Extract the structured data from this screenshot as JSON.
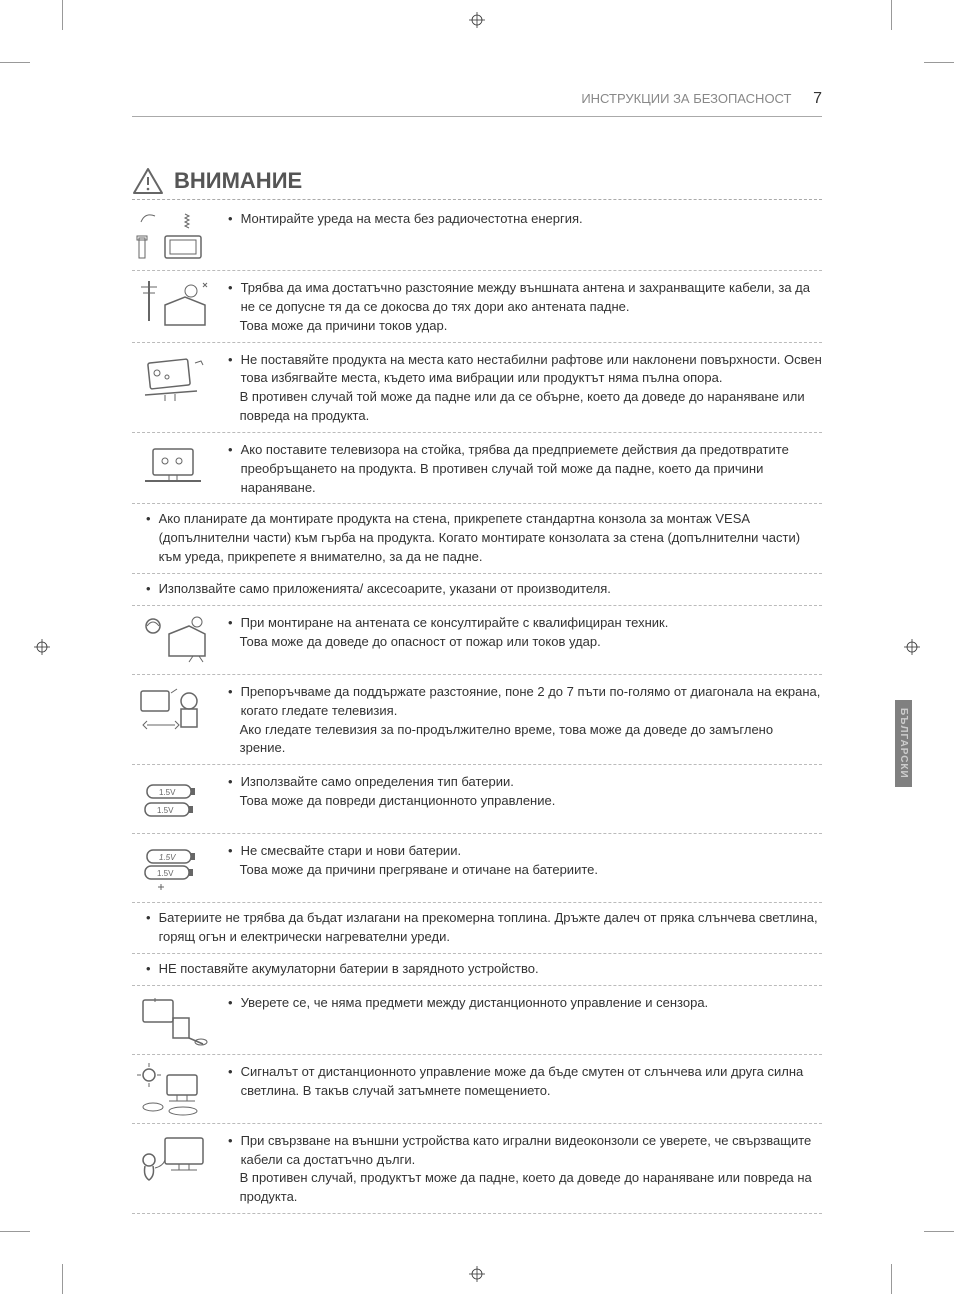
{
  "header": {
    "section": "ИНСТРУКЦИИ ЗА БЕЗОПАСНОСТ",
    "page": "7"
  },
  "title": "ВНИМАНИЕ",
  "side_tab": "БЪЛГАРСКИ",
  "rows": [
    {
      "icon": "radio",
      "lines": [
        "Монтирайте уреда на места без радиочестотна енергия."
      ]
    },
    {
      "icon": "antenna",
      "lines": [
        "Трябва да има достатъчно разстояние между външната антена и захранващите кабели, за да не се допусне тя да се докосва до тях дори ако антената падне.",
        "Това може да причини токов удар."
      ]
    },
    {
      "icon": "tilt",
      "lines": [
        "Не поставяйте продукта на места като нестабилни рафтове или наклонени повърхности. Освен това избягвайте места, където има вибрации или продуктът няма пълна опора.",
        "В противен случай той може да падне или да се обърне, което да доведе до нараняване или повреда на продукта."
      ]
    },
    {
      "icon": "stand",
      "lines": [
        "Ако поставите телевизора на стойка, трябва да предприемете действия да предотвратите преобръщането на продукта. В противен случай той може да падне, което да причини нараняване."
      ]
    }
  ],
  "full1": "Ако планирате да монтирате продукта на стена, прикрепете стандартна конзола за монтаж VESA (допълнителни части) към гърба на продукта. Когато монтирате конзолата за стена (допълнителни части) към уреда, прикрепете я внимателно, за да не падне.",
  "full2": "Използвайте само приложенията/ аксесоарите, указани от производителя.",
  "rows2": [
    {
      "icon": "tech",
      "lines": [
        "При монтиране на антената се консултирайте с квалифициран техник.",
        "Това може да доведе до опасност от пожар или токов удар."
      ]
    },
    {
      "icon": "distance",
      "lines": [
        "Препоръчваме да поддържате разстояние, поне 2 до 7 пъти по-голямо от диагонала на екрана, когато гледате телевизия.",
        "Ако гледате телевизия за по-продължително време, това може да доведе до замъглено зрение."
      ]
    },
    {
      "icon": "battery1",
      "lines": [
        "Използвайте само определения тип батерии.",
        "Това може да повреди дистанционното управление."
      ]
    },
    {
      "icon": "battery2",
      "lines": [
        "Не смесвайте стари и нови батерии.",
        "Това може да причини прегряване и отичане на батериите."
      ]
    }
  ],
  "full3": "Батериите не трябва да бъдат излагани на прекомерна топлина. Дръжте далеч от пряка слънчева светлина, горящ огън и електрически нагревателни уреди.",
  "full4": "НЕ поставяйте акумулаторни батерии в зарядното устройство.",
  "rows3": [
    {
      "icon": "remote",
      "lines": [
        "Уверете се, че няма предмети между дистанционното управление и сензора."
      ]
    },
    {
      "icon": "sunlight",
      "lines": [
        "Сигналът от дистанционното управление може да бъде смутен от слънчева или друга силна светлина. В такъв случай затъмнете помещението."
      ]
    },
    {
      "icon": "console",
      "lines": [
        "При свързване на външни устройства като игрални видеоконзоли се уверете, че свързващите кабели са достатъчно дълги.",
        "В противен случай, продуктът може да падне, което да доведе до нараняване или повреда на продукта."
      ]
    }
  ],
  "colors": {
    "text": "#333333",
    "muted": "#888888",
    "border": "#bbbbbb",
    "tab_bg": "#808080"
  }
}
